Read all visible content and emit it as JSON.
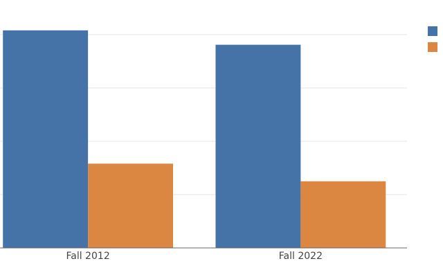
{
  "chart_data": {
    "type": "bar",
    "categories": [
      "Fall 2012",
      "Fall 2022"
    ],
    "series": [
      {
        "color": "#4572a7",
        "values": [
          4.08,
          3.81
        ]
      },
      {
        "color": "#db8742",
        "values": [
          1.58,
          1.25
        ]
      }
    ],
    "ylim": [
      0,
      4.2
    ],
    "yticks": [
      0,
      1,
      2,
      3,
      4
    ],
    "grid": true
  }
}
